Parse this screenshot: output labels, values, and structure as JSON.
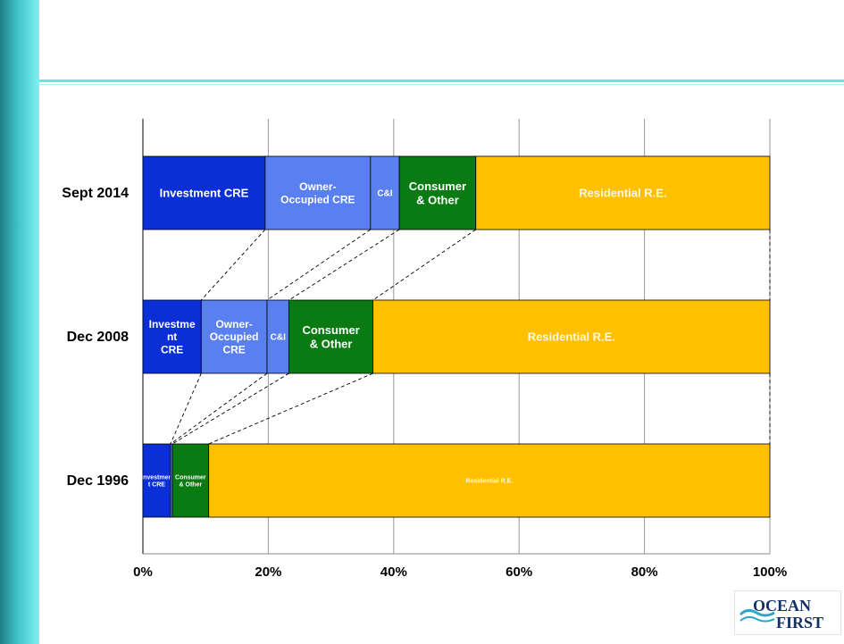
{
  "chart_data": {
    "type": "bar",
    "orientation": "horizontal",
    "stacked": "percent",
    "categories": [
      "Sept 2014",
      "Dec 2008",
      "Dec 1996"
    ],
    "series": [
      {
        "name": "Investment CRE",
        "color": "#0a2fd6",
        "values": [
          19.5,
          9.3,
          4.4
        ],
        "labels": [
          "Investment CRE",
          "Investme\nnt\nCRE",
          "Investmen\nt CRE"
        ]
      },
      {
        "name": "Owner-Occupied CRE",
        "color": "#5a7ff0",
        "values": [
          16.8,
          10.5,
          0
        ],
        "labels": [
          "Owner-\nOccupied CRE",
          "Owner-\nOccupied\nCRE",
          ""
        ]
      },
      {
        "name": "C&I",
        "color": "#5a7ff0",
        "values": [
          4.6,
          3.5,
          0.3
        ],
        "labels": [
          "C&I",
          "C&I",
          ""
        ]
      },
      {
        "name": "Consumer & Other",
        "color": "#0a7a12",
        "values": [
          12.2,
          13.4,
          5.8
        ],
        "labels": [
          "Consumer\n& Other",
          "Consumer\n& Other",
          "Consumer\n& Other"
        ]
      },
      {
        "name": "Residential R.E.",
        "color": "#ffc000",
        "values": [
          46.9,
          63.3,
          89.5
        ],
        "labels": [
          "Residential R.E.",
          "Residential R.E.",
          "Residential R.E."
        ]
      }
    ],
    "xlim": [
      0,
      100
    ],
    "xticks": [
      "0%",
      "20%",
      "40%",
      "60%",
      "80%",
      "100%"
    ],
    "grid": true,
    "connectors": "dashed lines linking segment boundaries between adjacent bars"
  },
  "logo": {
    "line1": "OCEAN",
    "line2": "FIRST"
  }
}
